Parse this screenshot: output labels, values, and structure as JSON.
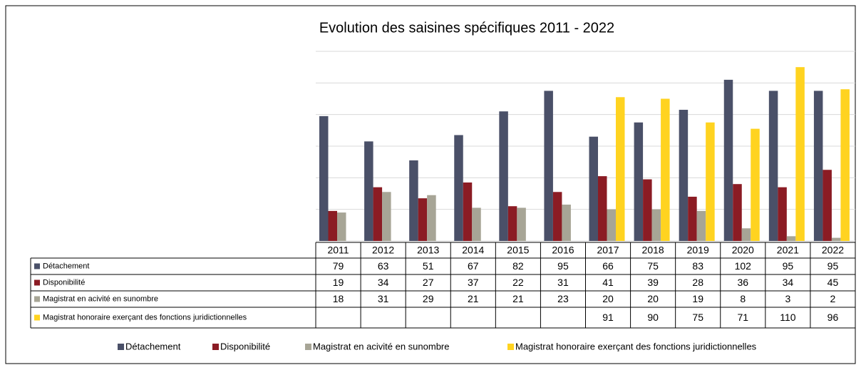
{
  "chart_data": {
    "type": "bar",
    "title": "Evolution des saisines spécifiques 2011 - 2022",
    "categories": [
      "2011",
      "2012",
      "2013",
      "2014",
      "2015",
      "2016",
      "2017",
      "2018",
      "2019",
      "2020",
      "2021",
      "2022"
    ],
    "series": [
      {
        "name": "Détachement",
        "color": "#4a5068",
        "values": [
          79,
          63,
          51,
          67,
          82,
          95,
          66,
          75,
          83,
          102,
          95,
          95
        ]
      },
      {
        "name": "Disponibilité",
        "color": "#8b1c24",
        "values": [
          19,
          34,
          27,
          37,
          22,
          31,
          41,
          39,
          28,
          36,
          34,
          45
        ]
      },
      {
        "name": "Magistrat en acivité en sunombre",
        "color": "#a7a596",
        "values": [
          18,
          31,
          29,
          21,
          21,
          23,
          20,
          20,
          19,
          8,
          3,
          2
        ]
      },
      {
        "name": "Magistrat honoraire exerçant des fonctions juridictionnelles",
        "color": "#ffd320",
        "values": [
          null,
          null,
          null,
          null,
          null,
          null,
          91,
          90,
          75,
          71,
          110,
          96
        ]
      }
    ],
    "ylim": [
      0,
      120
    ],
    "yticks": [
      0,
      20,
      40,
      60,
      80,
      100,
      120
    ],
    "grid": true
  }
}
